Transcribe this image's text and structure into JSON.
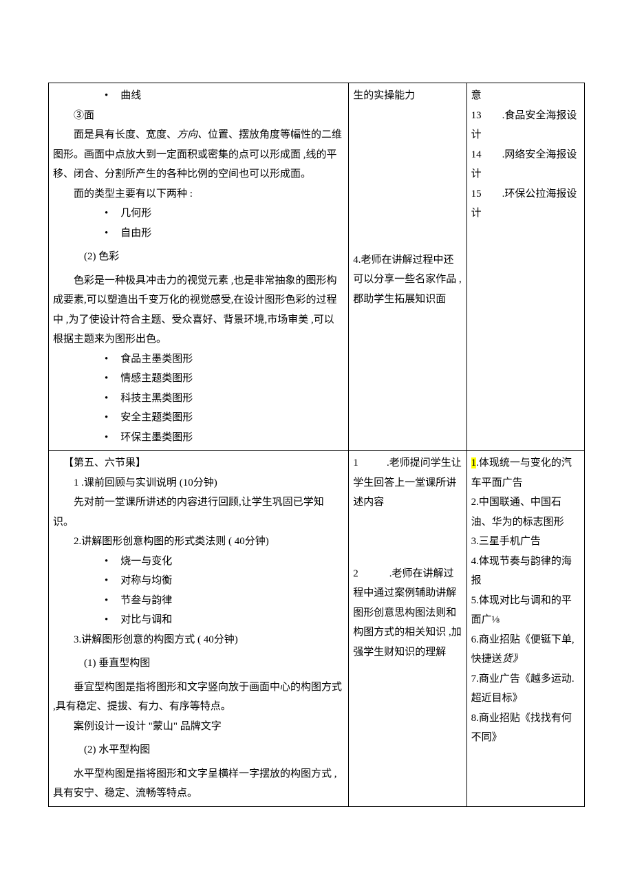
{
  "colors": {
    "text": "#000000",
    "background": "#ffffff",
    "border": "#000000",
    "highlight": "#ffff00"
  },
  "typography": {
    "font_family": "SimSun, 宋体, serif",
    "font_size_pt": 11,
    "line_height": 1.9
  },
  "table": {
    "columns": [
      {
        "width_pct": 56
      },
      {
        "width_pct": 22
      },
      {
        "width_pct": 22
      }
    ]
  },
  "row1": {
    "col1": {
      "bullet_curve": "曲线",
      "heading_face": "③面",
      "face_p1a": "面是具有长度、宽度、",
      "face_p1_italic": "方向、",
      "face_p1b": "位置、摆放角度等幅性的二维图形。画面中点放大到一定面积或密集的点可以形成面 ,线的平移、闭合、分割所产生的各种比例的空间也可以形成面。",
      "face_types_intro": "面的类型主要有以下两种 :",
      "face_type1": "几何形",
      "face_type2": "自由形",
      "color_heading": "(2) 色彩",
      "color_para": "色彩是一种极具冲击力的视觉元素 ,也是非常抽象的图形构成要素,可以塑造出千变万化的视觉感受,在设计图形色彩的过程中 ,为了使设计符合主题、受众喜好、背景环境,市场审美 ,可以根据主题来为图形出色。",
      "theme1": "食品主墨类图形",
      "theme2": "情感主题类图形",
      "theme3": "科技主黑类图形",
      "theme4": "安全主题类图形",
      "theme5": "环保主墨类图形"
    },
    "col2": {
      "line1": "生的实操能力",
      "note4": "4.老师在讲解过程中还可以分享一些名家作品 ,郡助学生拓展知识面"
    },
    "col3": {
      "line_yi": "意",
      "item13_num": "13",
      "item13_txt": ".食品安全海报设计",
      "item14_num": "14",
      "item14_txt": ".网络安全海报设计",
      "item15_num": "15",
      "item15_txt": ".环保公拉海报设计"
    }
  },
  "row2": {
    "col1": {
      "heading": "【第五、六节果】",
      "item1": "1 .课前回顾与实训说明 (10分钟)",
      "item1_desc": "先对前一堂课所讲述的内容进行回顾,让学生巩固已学知识。",
      "item2": "2.讲解图形创意构图的形式类法则 ( 40分钟)",
      "b1": "烧一与变化",
      "b2": "对称与均衡",
      "b3": "节叁与韵律",
      "b4": "对比与调和",
      "item3": "3.讲解图形创意的构图方式 ( 40分钟)",
      "sub1_heading": "(1) 垂直型构图",
      "sub1_desc": "垂宜型构图是指将图形和文字竖向放于画面中心的构图方式 ,具有稳定、提拔、有力、有序等特点。",
      "case": "案例设计一设计 \"蒙山\" 品牌文字",
      "sub2_heading": "(2) 水平型构图",
      "sub2_desc": "水平型构图是指将图形和文字呈横样一字摆放的构图方式 ,具有安宁、稳定、流畅等特点。"
    },
    "col2": {
      "n1_num": "1",
      "n1_txt": ".老师提问学生让学生回答上一堂课所讲述内容",
      "n2_num": "2",
      "n2_txt": ".老师在讲解过程中通过案例辅助讲解图形创意思构图法则和构图方式的相关知识 ,加强学生财知识的理解"
    },
    "col3": {
      "i1_hl": "1",
      "i1": ".体现统一与变化的汽车平面广告",
      "i2": "2.中国联通、中国石油、华为的标志图形",
      "i3": "3.三星手机广告",
      "i4": "4.体现节奏与韵律的海报",
      "i5": "5.体现对比与调和的平面广⅛",
      "i6": "6.商业招贴《便铤下单,快捷送",
      "i6_italic": "货》",
      "i7": "7.商业广告《越多运动.超近目标》",
      "i8": "8.商业招贴《找找有何不同》"
    }
  }
}
